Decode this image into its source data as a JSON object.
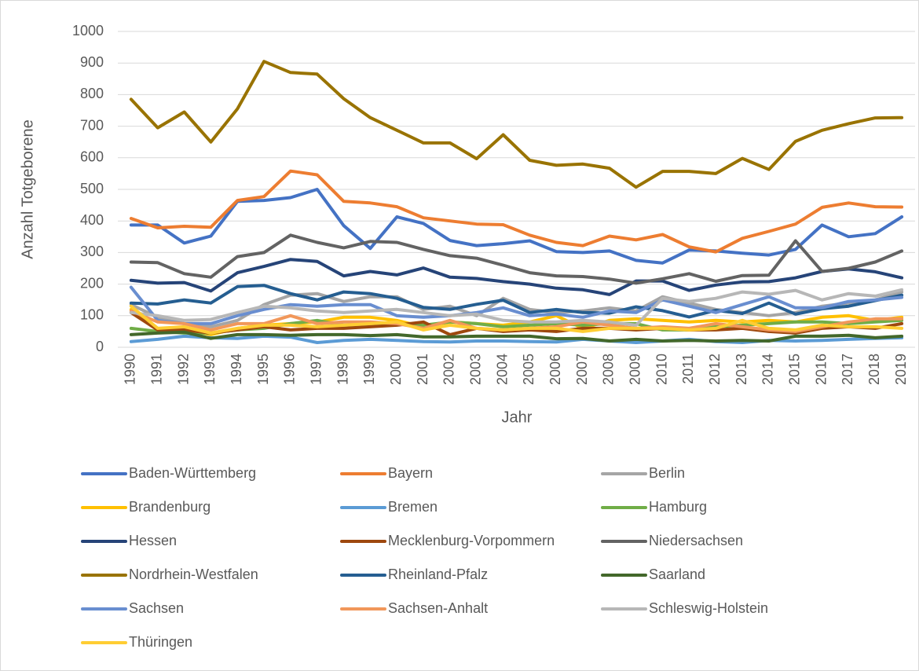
{
  "chart_data": {
    "type": "line",
    "y_label": "Anzahl Totgeborene",
    "x_label": "Jahr",
    "categories": [
      "1990",
      "1991",
      "1992",
      "1993",
      "1994",
      "1995",
      "1996",
      "1997",
      "1998",
      "1999",
      "2000",
      "2001",
      "2002",
      "2003",
      "2004",
      "2005",
      "2006",
      "2007",
      "2008",
      "2009",
      "2010",
      "2011",
      "2012",
      "2013",
      "2014",
      "2015",
      "2016",
      "2017",
      "2018",
      "2019"
    ],
    "ylim": [
      0,
      1000
    ],
    "yticks": [
      0,
      100,
      200,
      300,
      400,
      500,
      600,
      700,
      800,
      900,
      1000
    ],
    "grid": true,
    "legend": "bottom",
    "series": [
      {
        "name": "Baden-Württemberg",
        "color": "#4472c4",
        "values": [
          387,
          387,
          330,
          352,
          462,
          465,
          474,
          500,
          385,
          313,
          413,
          392,
          338,
          322,
          328,
          337,
          303,
          300,
          305,
          275,
          267,
          308,
          305,
          298,
          292,
          310,
          387,
          350,
          360,
          413
        ]
      },
      {
        "name": "Bayern",
        "color": "#ed7d31",
        "values": [
          408,
          378,
          383,
          380,
          465,
          477,
          558,
          546,
          462,
          457,
          445,
          410,
          400,
          390,
          388,
          355,
          332,
          322,
          352,
          340,
          357,
          318,
          302,
          345,
          367,
          390,
          443,
          457,
          445,
          444
        ]
      },
      {
        "name": "Berlin",
        "color": "#a5a5a5",
        "values": [
          135,
          95,
          75,
          65,
          85,
          135,
          165,
          170,
          145,
          160,
          160,
          120,
          130,
          100,
          155,
          120,
          110,
          115,
          125,
          115,
          160,
          140,
          120,
          110,
          100,
          110,
          130,
          140,
          150,
          175
        ]
      },
      {
        "name": "Brandenburg",
        "color": "#ffc000",
        "values": [
          120,
          60,
          55,
          40,
          60,
          70,
          75,
          80,
          95,
          95,
          85,
          65,
          80,
          75,
          70,
          80,
          100,
          60,
          85,
          90,
          85,
          80,
          85,
          80,
          85,
          80,
          95,
          100,
          85,
          95
        ]
      },
      {
        "name": "Bremen",
        "color": "#5b9bd5",
        "values": [
          18,
          25,
          35,
          30,
          28,
          35,
          32,
          15,
          22,
          25,
          22,
          18,
          17,
          20,
          20,
          18,
          17,
          25,
          20,
          15,
          20,
          25,
          18,
          15,
          22,
          20,
          22,
          25,
          28,
          30
        ]
      },
      {
        "name": "Hamburg",
        "color": "#70ad47",
        "values": [
          60,
          50,
          45,
          45,
          55,
          60,
          75,
          85,
          70,
          70,
          75,
          70,
          80,
          75,
          65,
          70,
          75,
          70,
          75,
          75,
          55,
          55,
          65,
          70,
          75,
          80,
          80,
          75,
          80,
          85
        ]
      },
      {
        "name": "Hessen",
        "color": "#264478",
        "values": [
          212,
          203,
          205,
          178,
          236,
          256,
          278,
          272,
          226,
          240,
          229,
          251,
          222,
          218,
          208,
          200,
          187,
          182,
          167,
          210,
          210,
          180,
          197,
          207,
          208,
          220,
          240,
          248,
          239,
          220
        ]
      },
      {
        "name": "Mecklenburg-Vorpommern",
        "color": "#9e480e",
        "values": [
          110,
          55,
          55,
          45,
          55,
          65,
          55,
          60,
          60,
          65,
          70,
          80,
          40,
          60,
          50,
          55,
          50,
          60,
          60,
          55,
          60,
          55,
          55,
          60,
          50,
          45,
          60,
          65,
          60,
          75
        ]
      },
      {
        "name": "Niedersachsen",
        "color": "#636363",
        "values": [
          270,
          268,
          233,
          222,
          287,
          300,
          355,
          332,
          315,
          335,
          332,
          310,
          290,
          282,
          260,
          236,
          226,
          224,
          216,
          203,
          217,
          233,
          209,
          227,
          228,
          337,
          240,
          250,
          270,
          305
        ]
      },
      {
        "name": "Nordrhein-Westfalen",
        "color": "#997300",
        "values": [
          785,
          695,
          745,
          650,
          755,
          905,
          870,
          865,
          787,
          727,
          687,
          647,
          647,
          597,
          673,
          592,
          576,
          580,
          567,
          507,
          557,
          557,
          550,
          598,
          563,
          652,
          687,
          708,
          726,
          727
        ]
      },
      {
        "name": "Rheinland-Pfalz",
        "color": "#255e91",
        "values": [
          140,
          137,
          150,
          140,
          192,
          196,
          170,
          150,
          175,
          170,
          155,
          126,
          120,
          136,
          149,
          110,
          120,
          110,
          108,
          128,
          116,
          96,
          117,
          107,
          140,
          105,
          122,
          130,
          148,
          165
        ]
      },
      {
        "name": "Saarland",
        "color": "#43682b",
        "values": [
          40,
          45,
          48,
          28,
          40,
          40,
          38,
          40,
          40,
          37,
          40,
          33,
          33,
          35,
          35,
          35,
          27,
          28,
          20,
          25,
          20,
          22,
          20,
          22,
          20,
          35,
          35,
          38,
          30,
          35
        ]
      },
      {
        "name": "Sachsen",
        "color": "#698ed0",
        "values": [
          190,
          85,
          75,
          75,
          100,
          120,
          135,
          130,
          135,
          135,
          100,
          95,
          100,
          110,
          125,
          100,
          105,
          95,
          115,
          110,
          150,
          130,
          110,
          135,
          160,
          125,
          125,
          145,
          150,
          158
        ]
      },
      {
        "name": "Sachsen-Anhalt",
        "color": "#f1975a",
        "values": [
          115,
          80,
          75,
          55,
          75,
          75,
          100,
          75,
          80,
          80,
          75,
          60,
          85,
          60,
          55,
          60,
          65,
          80,
          70,
          60,
          65,
          60,
          75,
          65,
          55,
          50,
          65,
          80,
          90,
          90
        ]
      },
      {
        "name": "Schleswig-Holstein",
        "color": "#b7b7b7",
        "values": [
          110,
          100,
          85,
          88,
          110,
          130,
          125,
          115,
          110,
          115,
          120,
          110,
          100,
          105,
          85,
          80,
          80,
          85,
          80,
          70,
          155,
          145,
          155,
          175,
          168,
          180,
          150,
          170,
          162,
          182
        ]
      },
      {
        "name": "Thüringen",
        "color": "#ffcd33",
        "values": [
          130,
          60,
          65,
          45,
          60,
          70,
          70,
          65,
          70,
          75,
          80,
          55,
          70,
          60,
          55,
          60,
          60,
          50,
          60,
          60,
          60,
          55,
          60,
          85,
          60,
          55,
          70,
          65,
          65,
          60
        ]
      }
    ]
  }
}
